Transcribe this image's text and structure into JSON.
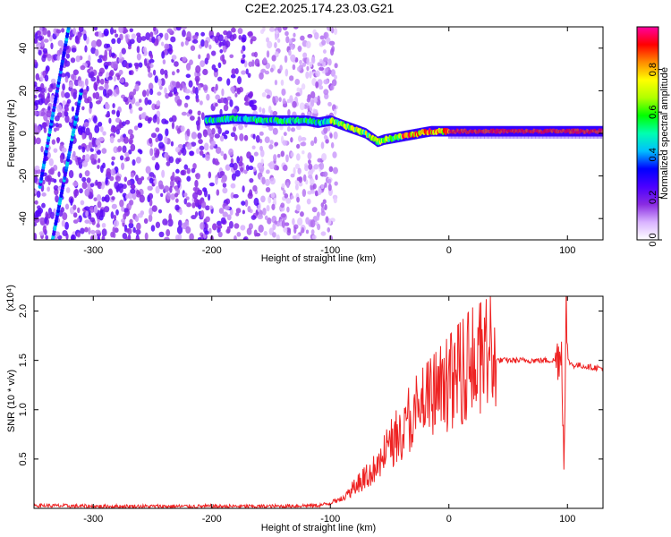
{
  "title": "C2E2.2025.174.23.03.G21",
  "chart_data": [
    {
      "type": "heatmap",
      "xlabel": "Height of straight line (km)",
      "ylabel": "Frequency (Hz)",
      "xlim": [
        -350,
        130
      ],
      "ylim": [
        -50,
        50
      ],
      "xticks": [
        -300,
        -200,
        -100,
        0,
        100
      ],
      "yticks": [
        -40,
        -20,
        0,
        20,
        40
      ],
      "colorbar": {
        "label": "Normalized spectral amplitude",
        "range": [
          0,
          1
        ],
        "ticks": [
          0.0,
          0.2,
          0.4,
          0.6,
          0.8
        ],
        "colors": [
          "#ffffff",
          "#d9b3ff",
          "#8a2be2",
          "#4b00ff",
          "#0000ff",
          "#00bfff",
          "#00ffb0",
          "#00ff00",
          "#b0ff00",
          "#ffff00",
          "#ff8c00",
          "#ff0000",
          "#ff00a0"
        ]
      },
      "ridge": {
        "x": [
          -205,
          -180,
          -150,
          -120,
          -110,
          -100,
          -90,
          -80,
          -70,
          -60,
          -55,
          -45,
          -35,
          -25,
          -15,
          0,
          20,
          50,
          80,
          100,
          130
        ],
        "y": [
          6,
          7,
          6,
          6,
          5,
          6,
          4,
          2,
          0,
          -4,
          -3,
          -2,
          -1,
          0,
          1,
          1,
          1,
          1,
          1,
          1,
          1
        ]
      },
      "diagonal_streaks": [
        {
          "x": [
            -345,
            -320
          ],
          "y": [
            -25,
            52
          ]
        },
        {
          "x": [
            -335,
            -310
          ],
          "y": [
            -52,
            20
          ]
        }
      ]
    },
    {
      "type": "line",
      "xlabel": "Height of straight line (km)",
      "ylabel": "SNR (10 * v/v)",
      "y_multiplier_label": "(x10⁴)",
      "xlim": [
        -350,
        130
      ],
      "ylim": [
        0,
        2.15
      ],
      "xticks": [
        -300,
        -200,
        -100,
        0,
        100
      ],
      "yticks": [
        0.5,
        1.0,
        1.5,
        2.0
      ],
      "ytick_labels": [
        "0.5",
        "1.0",
        "1.5",
        "2.0"
      ],
      "series": [
        {
          "color": "#ee2222",
          "x": [
            -350,
            -300,
            -200,
            -150,
            -110,
            -100,
            -90,
            -80,
            -70,
            -60,
            -50,
            -40,
            -30,
            -20,
            -10,
            0,
            10,
            20,
            30,
            40,
            50,
            60,
            80,
            90,
            95,
            97,
            99,
            100,
            105,
            110,
            120,
            130
          ],
          "y": [
            0.03,
            0.02,
            0.02,
            0.02,
            0.03,
            0.05,
            0.1,
            0.2,
            0.3,
            0.4,
            0.6,
            0.75,
            0.9,
            1.0,
            1.1,
            1.2,
            1.3,
            1.4,
            1.45,
            1.5,
            1.5,
            1.5,
            1.5,
            1.5,
            1.6,
            0.5,
            2.1,
            1.5,
            1.45,
            1.45,
            1.43,
            1.42
          ]
        }
      ]
    }
  ]
}
